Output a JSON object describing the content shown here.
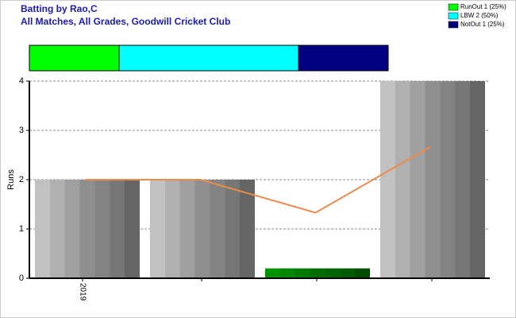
{
  "chart_data": [
    {
      "type": "bar",
      "title": "Batting by Rao,C",
      "subtitle": "All Matches, All Grades, Goodwill Cricket Club",
      "ylabel": "Runs",
      "categories": [
        "2019",
        null,
        null,
        null
      ],
      "values": [
        2,
        2,
        0.2,
        4
      ],
      "colors": [
        "#a8a8a8",
        "#a8a8a8",
        "#008000",
        "#a8a8a8"
      ],
      "line": {
        "values": [
          2,
          2,
          1.33,
          2.67
        ],
        "color": "#f08a4b"
      },
      "ylim": [
        0,
        4
      ],
      "yticks": [
        0,
        1,
        2,
        3,
        4
      ],
      "grid": true
    },
    {
      "type": "proportion",
      "xlim": [
        0,
        4
      ],
      "legend": "top-right",
      "series": [
        {
          "name": "RunOut 1 (25%)",
          "color": "#00ff00",
          "values": [
            1
          ]
        },
        {
          "name": "LBW 2 (50%)",
          "color": "#00ffff",
          "values": [
            2
          ]
        },
        {
          "name": "NotOut 1 (25%)",
          "color": "#000080",
          "values": [
            1
          ]
        }
      ]
    }
  ]
}
